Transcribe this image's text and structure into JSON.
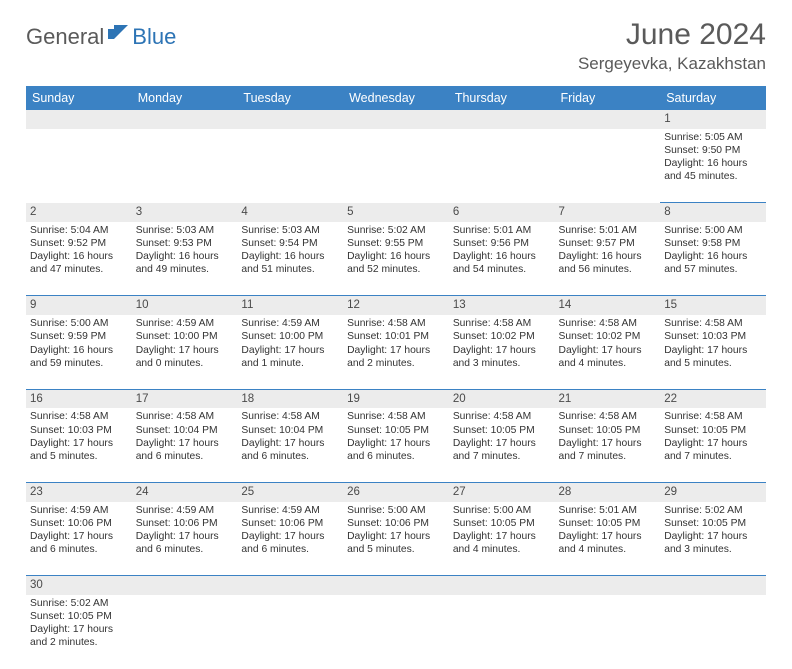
{
  "logo": {
    "text1": "General",
    "text2": "Blue"
  },
  "title": "June 2024",
  "location": "Sergeyevka, Kazakhstan",
  "colors": {
    "header_bg": "#3b82c4",
    "header_text": "#ffffff",
    "daynum_bg": "#ececec",
    "row_border": "#3b82c4",
    "title_color": "#5a5a5a",
    "logo_blue": "#2d74b5"
  },
  "daysOfWeek": [
    "Sunday",
    "Monday",
    "Tuesday",
    "Wednesday",
    "Thursday",
    "Friday",
    "Saturday"
  ],
  "weeks": [
    [
      null,
      null,
      null,
      null,
      null,
      null,
      {
        "n": "1",
        "sr": "5:05 AM",
        "ss": "9:50 PM",
        "dl": "16 hours and 45 minutes."
      }
    ],
    [
      {
        "n": "2",
        "sr": "5:04 AM",
        "ss": "9:52 PM",
        "dl": "16 hours and 47 minutes."
      },
      {
        "n": "3",
        "sr": "5:03 AM",
        "ss": "9:53 PM",
        "dl": "16 hours and 49 minutes."
      },
      {
        "n": "4",
        "sr": "5:03 AM",
        "ss": "9:54 PM",
        "dl": "16 hours and 51 minutes."
      },
      {
        "n": "5",
        "sr": "5:02 AM",
        "ss": "9:55 PM",
        "dl": "16 hours and 52 minutes."
      },
      {
        "n": "6",
        "sr": "5:01 AM",
        "ss": "9:56 PM",
        "dl": "16 hours and 54 minutes."
      },
      {
        "n": "7",
        "sr": "5:01 AM",
        "ss": "9:57 PM",
        "dl": "16 hours and 56 minutes."
      },
      {
        "n": "8",
        "sr": "5:00 AM",
        "ss": "9:58 PM",
        "dl": "16 hours and 57 minutes."
      }
    ],
    [
      {
        "n": "9",
        "sr": "5:00 AM",
        "ss": "9:59 PM",
        "dl": "16 hours and 59 minutes."
      },
      {
        "n": "10",
        "sr": "4:59 AM",
        "ss": "10:00 PM",
        "dl": "17 hours and 0 minutes."
      },
      {
        "n": "11",
        "sr": "4:59 AM",
        "ss": "10:00 PM",
        "dl": "17 hours and 1 minute."
      },
      {
        "n": "12",
        "sr": "4:58 AM",
        "ss": "10:01 PM",
        "dl": "17 hours and 2 minutes."
      },
      {
        "n": "13",
        "sr": "4:58 AM",
        "ss": "10:02 PM",
        "dl": "17 hours and 3 minutes."
      },
      {
        "n": "14",
        "sr": "4:58 AM",
        "ss": "10:02 PM",
        "dl": "17 hours and 4 minutes."
      },
      {
        "n": "15",
        "sr": "4:58 AM",
        "ss": "10:03 PM",
        "dl": "17 hours and 5 minutes."
      }
    ],
    [
      {
        "n": "16",
        "sr": "4:58 AM",
        "ss": "10:03 PM",
        "dl": "17 hours and 5 minutes."
      },
      {
        "n": "17",
        "sr": "4:58 AM",
        "ss": "10:04 PM",
        "dl": "17 hours and 6 minutes."
      },
      {
        "n": "18",
        "sr": "4:58 AM",
        "ss": "10:04 PM",
        "dl": "17 hours and 6 minutes."
      },
      {
        "n": "19",
        "sr": "4:58 AM",
        "ss": "10:05 PM",
        "dl": "17 hours and 6 minutes."
      },
      {
        "n": "20",
        "sr": "4:58 AM",
        "ss": "10:05 PM",
        "dl": "17 hours and 7 minutes."
      },
      {
        "n": "21",
        "sr": "4:58 AM",
        "ss": "10:05 PM",
        "dl": "17 hours and 7 minutes."
      },
      {
        "n": "22",
        "sr": "4:58 AM",
        "ss": "10:05 PM",
        "dl": "17 hours and 7 minutes."
      }
    ],
    [
      {
        "n": "23",
        "sr": "4:59 AM",
        "ss": "10:06 PM",
        "dl": "17 hours and 6 minutes."
      },
      {
        "n": "24",
        "sr": "4:59 AM",
        "ss": "10:06 PM",
        "dl": "17 hours and 6 minutes."
      },
      {
        "n": "25",
        "sr": "4:59 AM",
        "ss": "10:06 PM",
        "dl": "17 hours and 6 minutes."
      },
      {
        "n": "26",
        "sr": "5:00 AM",
        "ss": "10:06 PM",
        "dl": "17 hours and 5 minutes."
      },
      {
        "n": "27",
        "sr": "5:00 AM",
        "ss": "10:05 PM",
        "dl": "17 hours and 4 minutes."
      },
      {
        "n": "28",
        "sr": "5:01 AM",
        "ss": "10:05 PM",
        "dl": "17 hours and 4 minutes."
      },
      {
        "n": "29",
        "sr": "5:02 AM",
        "ss": "10:05 PM",
        "dl": "17 hours and 3 minutes."
      }
    ],
    [
      {
        "n": "30",
        "sr": "5:02 AM",
        "ss": "10:05 PM",
        "dl": "17 hours and 2 minutes."
      },
      null,
      null,
      null,
      null,
      null,
      null
    ]
  ],
  "labels": {
    "sunrise": "Sunrise:",
    "sunset": "Sunset:",
    "daylight": "Daylight:"
  }
}
